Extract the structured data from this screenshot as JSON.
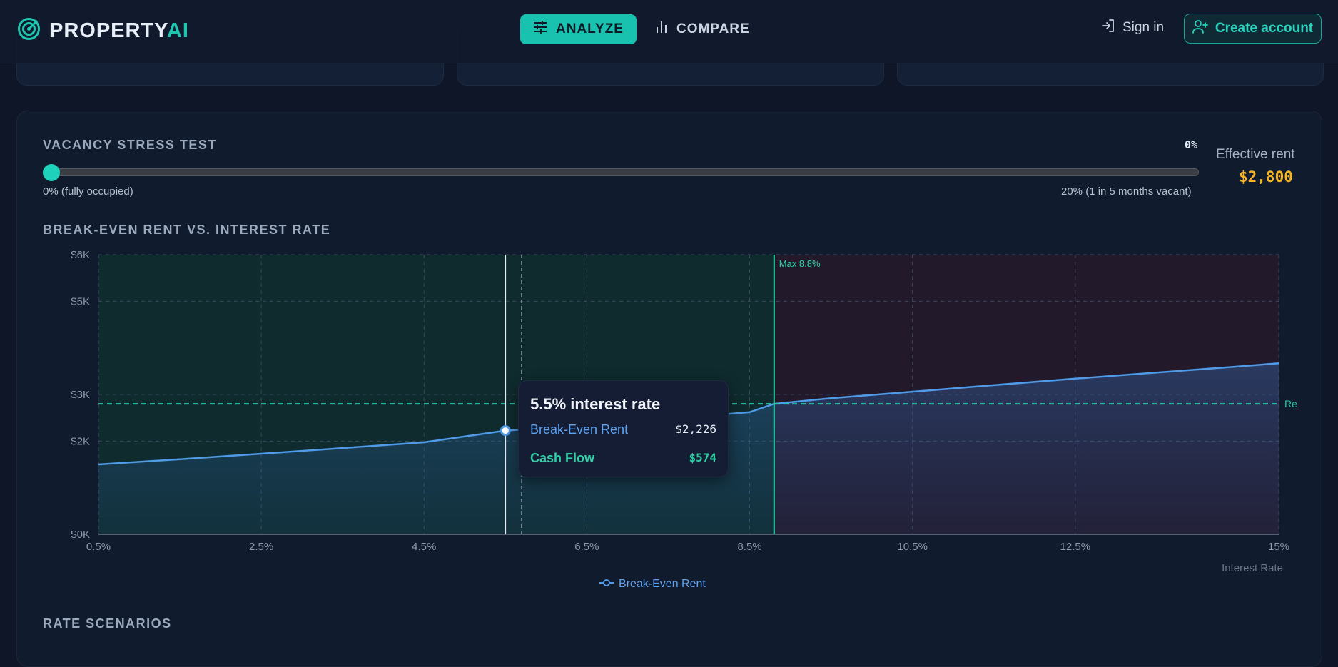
{
  "nav": {
    "brand_main": "PROPERTY",
    "brand_accent": "AI",
    "tabs": [
      {
        "label": "ANALYZE",
        "icon": "sliders-icon",
        "active": true
      },
      {
        "label": "COMPARE",
        "icon": "bar-chart-icon",
        "active": false
      }
    ],
    "sign_in": "Sign in",
    "create_account": "Create account"
  },
  "vacancy": {
    "title": "VACANCY STRESS TEST",
    "value_label": "0%",
    "value": 0,
    "min_label": "0% (fully occupied)",
    "max_label": "20% (1 in 5 months vacant)",
    "effective_rent_label": "Effective rent",
    "effective_rent_value": "$2,800"
  },
  "chart_section": {
    "title": "BREAK-EVEN RENT VS. INTEREST RATE"
  },
  "chart_data": {
    "type": "area",
    "xlabel": "Interest Rate",
    "ylabel": "",
    "xlim": [
      0.5,
      15
    ],
    "ylim": [
      0,
      6000
    ],
    "x_ticks": [
      0.5,
      2.5,
      4.5,
      6.5,
      8.5,
      10.5,
      12.5,
      15
    ],
    "x_tick_labels": [
      "0.5%",
      "2.5%",
      "4.5%",
      "6.5%",
      "8.5%",
      "10.5%",
      "12.5%",
      "15%"
    ],
    "y_ticks": [
      0,
      2000,
      3000,
      5000,
      6000
    ],
    "y_tick_labels": [
      "$0K",
      "$2K",
      "$3K",
      "$5K",
      "$6K"
    ],
    "series": [
      {
        "name": "Break-Even Rent",
        "color": "#4f9be8",
        "x": [
          0.5,
          1.5,
          2.5,
          3.5,
          4.5,
          5.5,
          6.5,
          7.5,
          8.5,
          8.8,
          9.5,
          10.5,
          11.5,
          12.5,
          13.5,
          14.5,
          15
        ],
        "y": [
          1500,
          1610,
          1730,
          1850,
          1975,
          2226,
          2340,
          2480,
          2620,
          2800,
          2920,
          3060,
          3200,
          3340,
          3470,
          3600,
          3670
        ]
      }
    ],
    "reference_lines": [
      {
        "type": "horizontal",
        "y": 2800,
        "label": "Re",
        "color": "#20c9a6"
      },
      {
        "type": "vertical",
        "x": 8.8,
        "label": "Max 8.8%",
        "color": "#2ed8ab"
      },
      {
        "type": "vertical",
        "x": 5.7,
        "color": "#aab4c3",
        "style": "dashed"
      }
    ],
    "hover": {
      "x": 5.5
    },
    "zones": [
      {
        "from": 0.5,
        "to": 8.8,
        "color": "#0f2b2e"
      },
      {
        "from": 8.8,
        "to": 15,
        "color": "#22192a"
      }
    ],
    "grid": true,
    "legend_position": "bottom"
  },
  "tooltip": {
    "title": "5.5% interest rate",
    "rows": [
      {
        "label": "Break-Even Rent",
        "value": "$2,226"
      },
      {
        "label": "Cash Flow",
        "value": "$574"
      }
    ]
  },
  "legend": {
    "label": "Break-Even Rent"
  },
  "scenarios": {
    "title": "RATE SCENARIOS"
  }
}
